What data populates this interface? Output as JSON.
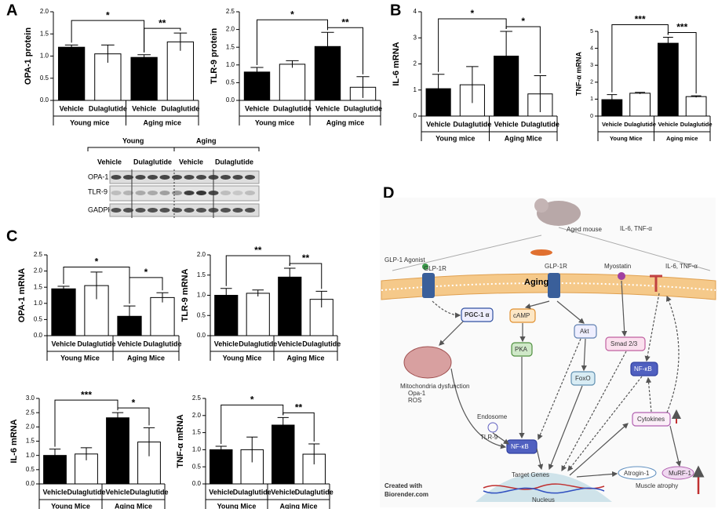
{
  "panels": [
    "A",
    "B",
    "C",
    "D"
  ],
  "chart_data": [
    {
      "type": "bar",
      "ylabel": "OPA-1 protein",
      "categories": [
        "Vehicle",
        "Dulaglutide",
        "Vehicle",
        "Dulaglutide"
      ],
      "groups": [
        "Young mice",
        "Aging mice"
      ],
      "values": [
        1.2,
        1.05,
        0.97,
        1.32
      ],
      "errors": [
        0.05,
        0.2,
        0.06,
        0.2
      ],
      "colors": [
        "#000000",
        "#ffffff",
        "#000000",
        "#ffffff"
      ],
      "ylim": [
        0,
        2
      ],
      "yticks": [
        {
          "value": 0,
          "label": "0.0"
        },
        0.5,
        {
          "value": 1,
          "label": "1.0"
        },
        1.5,
        {
          "value": 2,
          "label": "2.0"
        }
      ],
      "significance": [
        "*",
        "**"
      ]
    },
    {
      "type": "bar",
      "ylabel": "TLR-9 protein",
      "categories": [
        "Vehicle",
        "Dulaglutide",
        "Vehicle",
        "Dulaglutide"
      ],
      "groups": [
        "Young mice",
        "Aging mice"
      ],
      "values": [
        0.8,
        1.02,
        1.52,
        0.37
      ],
      "errors": [
        0.13,
        0.1,
        0.4,
        0.3
      ],
      "colors": [
        "#000000",
        "#ffffff",
        "#000000",
        "#ffffff"
      ],
      "ylim": [
        0,
        2.5
      ],
      "yticks": [
        {
          "value": 0,
          "label": "0.0"
        },
        0.5,
        {
          "value": 1,
          "label": "1.0"
        },
        1.5,
        {
          "value": 2,
          "label": "2.0"
        },
        2.5
      ],
      "significance": [
        "*",
        "**"
      ]
    },
    {
      "type": "bar",
      "ylabel": "IL-6 mRNA",
      "categories": [
        "Vehicle",
        "Dulaglutide",
        "Vehicle",
        "Dulaglutide"
      ],
      "groups": [
        "Young mice",
        "Aging Mice"
      ],
      "values": [
        1.05,
        1.2,
        2.3,
        0.85
      ],
      "errors": [
        0.55,
        0.7,
        0.95,
        0.7
      ],
      "colors": [
        "#000000",
        "#ffffff",
        "#000000",
        "#ffffff"
      ],
      "ylim": [
        0,
        4
      ],
      "yticks": [
        0,
        1,
        2,
        3,
        4
      ],
      "significance": [
        "*",
        "*"
      ]
    },
    {
      "type": "bar",
      "ylabel": "TNF-α mRNA",
      "categories": [
        "Vehicle",
        "Dulaglutide",
        "Vehicle",
        "Dulaglutide"
      ],
      "groups": [
        "Young Mice",
        "Aging mice"
      ],
      "values": [
        0.97,
        1.35,
        4.3,
        1.15
      ],
      "errors": [
        0.3,
        0.05,
        0.35,
        0.05
      ],
      "colors": [
        "#000000",
        "#ffffff",
        "#000000",
        "#ffffff"
      ],
      "ylim": [
        0,
        5
      ],
      "yticks": [
        0,
        1,
        2,
        3,
        4,
        5
      ],
      "significance": [
        "***",
        "***"
      ]
    },
    {
      "type": "bar",
      "ylabel": "OPA-1 mRNA",
      "categories": [
        "Vehicle",
        "Dulaglutide",
        "Vehicle",
        "Dulaglutide"
      ],
      "groups": [
        "Young Mice",
        "Aging Mice"
      ],
      "values": [
        1.45,
        1.55,
        0.6,
        1.18
      ],
      "errors": [
        0.08,
        0.42,
        0.32,
        0.15
      ],
      "colors": [
        "#000000",
        "#ffffff",
        "#000000",
        "#ffffff"
      ],
      "ylim": [
        0,
        2.5
      ],
      "yticks": [
        {
          "value": 0,
          "label": "0.0"
        },
        0.5,
        {
          "value": 1,
          "label": "1.0"
        },
        1.5,
        {
          "value": 2,
          "label": "2.0"
        },
        2.5
      ],
      "significance": [
        "*",
        "*"
      ]
    },
    {
      "type": "bar",
      "ylabel": "TLR-9 mRNA",
      "categories": [
        "Vehicle",
        "Dulaglutide",
        "Vehicle",
        "Dulaglutide"
      ],
      "groups": [
        "Young Mice",
        "Aging Mice"
      ],
      "values": [
        1.0,
        1.05,
        1.45,
        0.9
      ],
      "errors": [
        0.17,
        0.08,
        0.22,
        0.2
      ],
      "colors": [
        "#000000",
        "#ffffff",
        "#000000",
        "#ffffff"
      ],
      "ylim": [
        0,
        2
      ],
      "yticks": [
        {
          "value": 0,
          "label": "0.0"
        },
        0.5,
        {
          "value": 1,
          "label": "1.0"
        },
        1.5,
        {
          "value": 2,
          "label": "2.0"
        }
      ],
      "significance": [
        "**",
        "**"
      ]
    },
    {
      "type": "bar",
      "ylabel": "IL-6 mRNA",
      "categories": [
        "Vehicle",
        "Dulaglutide",
        "Vehicle",
        "Dulaglutide"
      ],
      "groups": [
        "Young Mice",
        "Aging Mice"
      ],
      "values": [
        1.0,
        1.05,
        2.32,
        1.47
      ],
      "errors": [
        0.22,
        0.22,
        0.18,
        0.5
      ],
      "colors": [
        "#000000",
        "#ffffff",
        "#000000",
        "#ffffff"
      ],
      "ylim": [
        0,
        3
      ],
      "yticks": [
        {
          "value": 0,
          "label": "0.0"
        },
        0.5,
        {
          "value": 1,
          "label": "1.0"
        },
        1.5,
        {
          "value": 2,
          "label": "2.0"
        },
        2.5,
        {
          "value": 3,
          "label": "3.0"
        }
      ],
      "significance": [
        "***",
        "*"
      ]
    },
    {
      "type": "bar",
      "ylabel": "TNF-α mRNA",
      "categories": [
        "Vehicle",
        "Dulaglutide",
        "Vehicle",
        "Dulaglutide"
      ],
      "groups": [
        "Young Mice",
        "Aging Mice"
      ],
      "values": [
        1.0,
        1.0,
        1.72,
        0.87
      ],
      "errors": [
        0.1,
        0.37,
        0.22,
        0.3
      ],
      "colors": [
        "#000000",
        "#ffffff",
        "#000000",
        "#ffffff"
      ],
      "ylim": [
        0,
        2.5
      ],
      "yticks": [
        {
          "value": 0,
          "label": "0.0"
        },
        0.5,
        {
          "value": 1,
          "label": "1.0"
        },
        1.5,
        {
          "value": 2,
          "label": "2.0"
        },
        2.5
      ],
      "significance": [
        "*",
        "**"
      ]
    }
  ],
  "blot": {
    "groups": [
      "Young",
      "Aging"
    ],
    "lanes": [
      "Vehicle",
      "Dulaglutide",
      "Vehicle",
      "Dulaglutide"
    ],
    "rows": [
      "OPA-1",
      "TLR-9",
      "GADPH"
    ]
  },
  "diagram": {
    "mouse": "Aged mouse",
    "cytokines_top": "IL-6, TNF-α",
    "cytokines_side": "IL-6, TNF-α",
    "agonist": "GLP-1 Agonist",
    "receptor_left": "GLP-1R",
    "receptor_right": "GLP-1R",
    "aging": "Aging",
    "myostatin": "Myostatin",
    "pgc": "PGC-1 α",
    "camp": "cAMP",
    "pka": "PKA",
    "akt": "Akt",
    "foxo": "FoxO",
    "smad": "Smad 2/3",
    "nfkb_right": "NF-κB",
    "nfkb_left": "NF-κB",
    "mito": "Mitochondria dysfunction",
    "opa": "Opa-1",
    "ros": "ROS",
    "endosome": "Endosome",
    "tlr": "TLR-9",
    "cytokines": "Cytokines",
    "target": "Target Genes",
    "nucleus": "Nucleus",
    "atrogin": "Atrogin-1",
    "murf": "MuRF-1",
    "atrophy": "Muscle atrophy",
    "credit1": "Created with",
    "credit2": "Biorender.com"
  }
}
